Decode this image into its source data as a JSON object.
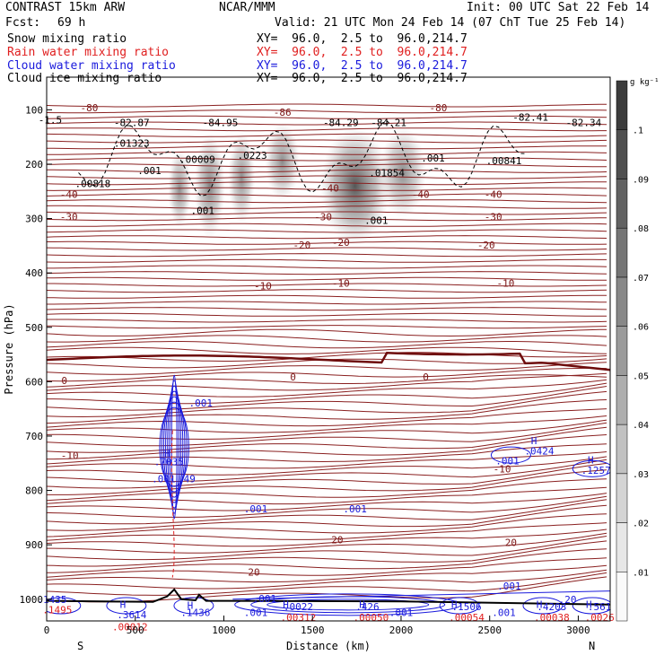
{
  "header": {
    "model": "CONTRAST 15km ARW",
    "fcst_label": "Fcst:",
    "fcst_value": "69 h",
    "center": "NCAR/MMM",
    "init": "Init: 00 UTC Sat 22 Feb 14",
    "valid": "Valid: 21 UTC Mon 24 Feb 14 (07 ChT Tue 25 Feb 14)",
    "xy_line": "XY=  96.0,  2.5 to  96.0,214.7"
  },
  "legend": [
    {
      "label": "Snow mixing ratio",
      "color": "#000000"
    },
    {
      "label": "Rain water mixing ratio",
      "color": "#e02020"
    },
    {
      "label": "Cloud water mixing ratio",
      "color": "#1a1adc"
    },
    {
      "label": "Cloud ice mixing ratio",
      "color": "#000000"
    }
  ],
  "chart_data": {
    "type": "heatmap",
    "xlabel": "Distance (km)",
    "ylabel": "Pressure (hPa)",
    "xlim": [
      0,
      3180
    ],
    "ylim": [
      1040,
      40
    ],
    "x_ticks": [
      0,
      500,
      1000,
      1500,
      2000,
      2500,
      3000
    ],
    "y_ticks": [
      100,
      200,
      300,
      400,
      500,
      600,
      700,
      800,
      900,
      1000
    ],
    "x_end_labels": {
      "left": "S",
      "right": "N"
    },
    "colorbar": {
      "unit": "g kg⁻¹",
      "ticks": [
        ".01",
        ".02",
        ".03",
        ".04",
        ".05",
        ".06",
        ".07",
        ".08",
        ".09",
        ".1"
      ]
    },
    "temperature_contours": [
      {
        "label": "-80",
        "p": 100
      },
      {
        "label": "-40",
        "p": 228
      },
      {
        "label": "-30",
        "p": 273
      },
      {
        "label": "-20",
        "p": 318
      },
      {
        "label": "-10",
        "p": 380
      },
      {
        "label": "0",
        "p": 560
      },
      {
        "label": "-10",
        "p": 700
      },
      {
        "label": "20",
        "p": 862
      }
    ],
    "contour_labels": [
      {
        "text": "-80",
        "x": 240,
        "p": 103,
        "color": "#7b1414"
      },
      {
        "text": "-86",
        "x": 1330,
        "p": 111,
        "color": "#7b1414"
      },
      {
        "text": "-80",
        "x": 2210,
        "p": 103,
        "color": "#7b1414"
      },
      {
        "text": "-82.87",
        "x": 480,
        "p": 130,
        "color": "#000000"
      },
      {
        "text": "-84.95",
        "x": 980,
        "p": 130,
        "color": "#000000"
      },
      {
        "text": "-84.29",
        "x": 1660,
        "p": 130,
        "color": "#000000"
      },
      {
        "text": "-84.21",
        "x": 1930,
        "p": 130,
        "color": "#000000"
      },
      {
        "text": "-82.41",
        "x": 2730,
        "p": 120,
        "color": "#000000"
      },
      {
        "text": "-82.34",
        "x": 3030,
        "p": 130,
        "color": "#000000"
      },
      {
        "text": "-1.5",
        "x": 20,
        "p": 125,
        "color": "#000000"
      },
      {
        "text": ".01323",
        "x": 480,
        "p": 168,
        "color": "#000000"
      },
      {
        "text": ".00009",
        "x": 850,
        "p": 198,
        "color": "#000000"
      },
      {
        "text": ".0223",
        "x": 1160,
        "p": 190,
        "color": "#000000"
      },
      {
        "text": ".001",
        "x": 580,
        "p": 218,
        "color": "#000000"
      },
      {
        "text": ".00818",
        "x": 260,
        "p": 242,
        "color": "#000000"
      },
      {
        "text": ".01854",
        "x": 1920,
        "p": 222,
        "color": "#000000"
      },
      {
        "text": ".001",
        "x": 2180,
        "p": 195,
        "color": "#000000"
      },
      {
        "text": ".00841",
        "x": 2580,
        "p": 200,
        "color": "#000000"
      },
      {
        "text": ".001",
        "x": 880,
        "p": 292,
        "color": "#000000"
      },
      {
        "text": ".001",
        "x": 1860,
        "p": 310,
        "color": "#000000"
      },
      {
        "text": "-40",
        "x": 125,
        "p": 262,
        "color": "#7b1414"
      },
      {
        "text": "-40",
        "x": 1600,
        "p": 250,
        "color": "#7b1414"
      },
      {
        "text": "-40",
        "x": 2110,
        "p": 262,
        "color": "#7b1414"
      },
      {
        "text": "-40",
        "x": 2520,
        "p": 262,
        "color": "#7b1414"
      },
      {
        "text": "-30",
        "x": 125,
        "p": 303,
        "color": "#7b1414"
      },
      {
        "text": "-30",
        "x": 1560,
        "p": 303,
        "color": "#7b1414"
      },
      {
        "text": "-30",
        "x": 2520,
        "p": 303,
        "color": "#7b1414"
      },
      {
        "text": "-20",
        "x": 1440,
        "p": 355,
        "color": "#7b1414"
      },
      {
        "text": "-20",
        "x": 1660,
        "p": 350,
        "color": "#7b1414"
      },
      {
        "text": "-20",
        "x": 2480,
        "p": 355,
        "color": "#7b1414"
      },
      {
        "text": "-10",
        "x": 1220,
        "p": 430,
        "color": "#7b1414"
      },
      {
        "text": "-10",
        "x": 1660,
        "p": 425,
        "color": "#7b1414"
      },
      {
        "text": "-10",
        "x": 2590,
        "p": 425,
        "color": "#7b1414"
      },
      {
        "text": "0",
        "x": 100,
        "p": 604,
        "color": "#7b1414"
      },
      {
        "text": "0",
        "x": 1390,
        "p": 598,
        "color": "#7b1414"
      },
      {
        "text": "0",
        "x": 2140,
        "p": 598,
        "color": "#7b1414"
      },
      {
        "text": ".001",
        "x": 870,
        "p": 646,
        "color": "#1a1adc"
      },
      {
        "text": "-10",
        "x": 130,
        "p": 742,
        "color": "#7b1414"
      },
      {
        "text": "H",
        "x": 680,
        "p": 738,
        "color": "#1a1adc"
      },
      {
        "text": ".7035",
        "x": 690,
        "p": 754,
        "color": "#1a1adc"
      },
      {
        "text": ".001",
        "x": 660,
        "p": 785,
        "color": "#1a1adc"
      },
      {
        "text": ".49",
        "x": 790,
        "p": 785,
        "color": "#1a1adc"
      },
      {
        "text": ".001",
        "x": 1180,
        "p": 840,
        "color": "#1a1adc"
      },
      {
        "text": ".001",
        "x": 1740,
        "p": 840,
        "color": "#1a1adc"
      },
      {
        "text": ".001",
        "x": 2600,
        "p": 752,
        "color": "#1a1adc"
      },
      {
        "text": "H",
        "x": 2750,
        "p": 715,
        "color": "#1a1adc"
      },
      {
        "text": ".0424",
        "x": 2780,
        "p": 734,
        "color": "#1a1adc"
      },
      {
        "text": "H",
        "x": 3070,
        "p": 750,
        "color": "#1a1adc"
      },
      {
        "text": ".1257",
        "x": 3100,
        "p": 769,
        "color": "#1a1adc"
      },
      {
        "text": "-10",
        "x": 2570,
        "p": 767,
        "color": "#7b1414"
      },
      {
        "text": "20",
        "x": 1640,
        "p": 897,
        "color": "#7b1414"
      },
      {
        "text": "20",
        "x": 2620,
        "p": 902,
        "color": "#7b1414"
      },
      {
        "text": "20",
        "x": 1170,
        "p": 957,
        "color": "#7b1414"
      },
      {
        "text": ".1435",
        "x": 30,
        "p": 1007,
        "color": "#1a1adc"
      },
      {
        "text": ".1495",
        "x": 60,
        "p": 1026,
        "color": "#e02020"
      },
      {
        "text": "H",
        "x": 430,
        "p": 1016,
        "color": "#1a1adc"
      },
      {
        "text": ".3614",
        "x": 480,
        "p": 1035,
        "color": "#1a1adc"
      },
      {
        "text": ".00012",
        "x": 470,
        "p": 1057,
        "color": "#e02020"
      },
      {
        "text": "H",
        "x": 810,
        "p": 1018,
        "color": "#1a1adc"
      },
      {
        "text": ".1436",
        "x": 840,
        "p": 1031,
        "color": "#1a1adc"
      },
      {
        "text": ".001",
        "x": 1230,
        "p": 1005,
        "color": "#1a1adc"
      },
      {
        "text": ".001",
        "x": 1180,
        "p": 1031,
        "color": "#1a1adc"
      },
      {
        "text": "H",
        "x": 1350,
        "p": 1016,
        "color": "#1a1adc"
      },
      {
        "text": ".0022",
        "x": 1420,
        "p": 1020,
        "color": "#1a1adc"
      },
      {
        "text": ".00312",
        "x": 1420,
        "p": 1040,
        "color": "#e02020"
      },
      {
        "text": "H",
        "x": 1780,
        "p": 1016,
        "color": "#1a1adc"
      },
      {
        "text": ".426",
        "x": 1810,
        "p": 1020,
        "color": "#1a1adc"
      },
      {
        "text": ".00050",
        "x": 1830,
        "p": 1040,
        "color": "#e02020"
      },
      {
        "text": ".001",
        "x": 2000,
        "p": 1031,
        "color": "#1a1adc"
      },
      {
        "text": "H",
        "x": 2300,
        "p": 1016,
        "color": "#1a1adc"
      },
      {
        "text": ".1506",
        "x": 2370,
        "p": 1020,
        "color": "#1a1adc"
      },
      {
        "text": ".00054",
        "x": 2370,
        "p": 1040,
        "color": "#e02020"
      },
      {
        "text": ".001",
        "x": 2610,
        "p": 982,
        "color": "#1a1adc"
      },
      {
        "text": ".001",
        "x": 2580,
        "p": 1031,
        "color": "#1a1adc"
      },
      {
        "text": "H",
        "x": 2780,
        "p": 1016,
        "color": "#1a1adc"
      },
      {
        "text": ".4203",
        "x": 2850,
        "p": 1020,
        "color": "#1a1adc"
      },
      {
        "text": ".00038",
        "x": 2850,
        "p": 1040,
        "color": "#e02020"
      },
      {
        "text": ".20",
        "x": 2940,
        "p": 1007,
        "color": "#1a1adc"
      },
      {
        "text": "H",
        "x": 3060,
        "p": 1016,
        "color": "#1a1adc"
      },
      {
        "text": ".561",
        "x": 3120,
        "p": 1020,
        "color": "#1a1adc"
      },
      {
        "text": ".0026",
        "x": 3120,
        "p": 1040,
        "color": "#e02020"
      }
    ],
    "ice_blobs": [
      {
        "x": 750,
        "p": 245,
        "sx": 30,
        "sp": 30,
        "a": 0.55
      },
      {
        "x": 920,
        "p": 240,
        "sx": 40,
        "sp": 40,
        "a": 0.6
      },
      {
        "x": 1100,
        "p": 225,
        "sx": 35,
        "sp": 35,
        "a": 0.55
      },
      {
        "x": 1330,
        "p": 195,
        "sx": 45,
        "sp": 30,
        "a": 0.55
      },
      {
        "x": 1740,
        "p": 240,
        "sx": 90,
        "sp": 45,
        "a": 0.8
      },
      {
        "x": 2010,
        "p": 215,
        "sx": 60,
        "sp": 35,
        "a": 0.55
      }
    ],
    "terrain": [
      {
        "x": 0,
        "p": 1003
      },
      {
        "x": 600,
        "p": 1005
      },
      {
        "x": 680,
        "p": 995
      },
      {
        "x": 720,
        "p": 982
      },
      {
        "x": 760,
        "p": 1000
      },
      {
        "x": 840,
        "p": 1002
      },
      {
        "x": 860,
        "p": 992
      },
      {
        "x": 900,
        "p": 1003
      },
      {
        "x": 2000,
        "p": 1004
      },
      {
        "x": 3180,
        "p": 1010
      }
    ]
  }
}
